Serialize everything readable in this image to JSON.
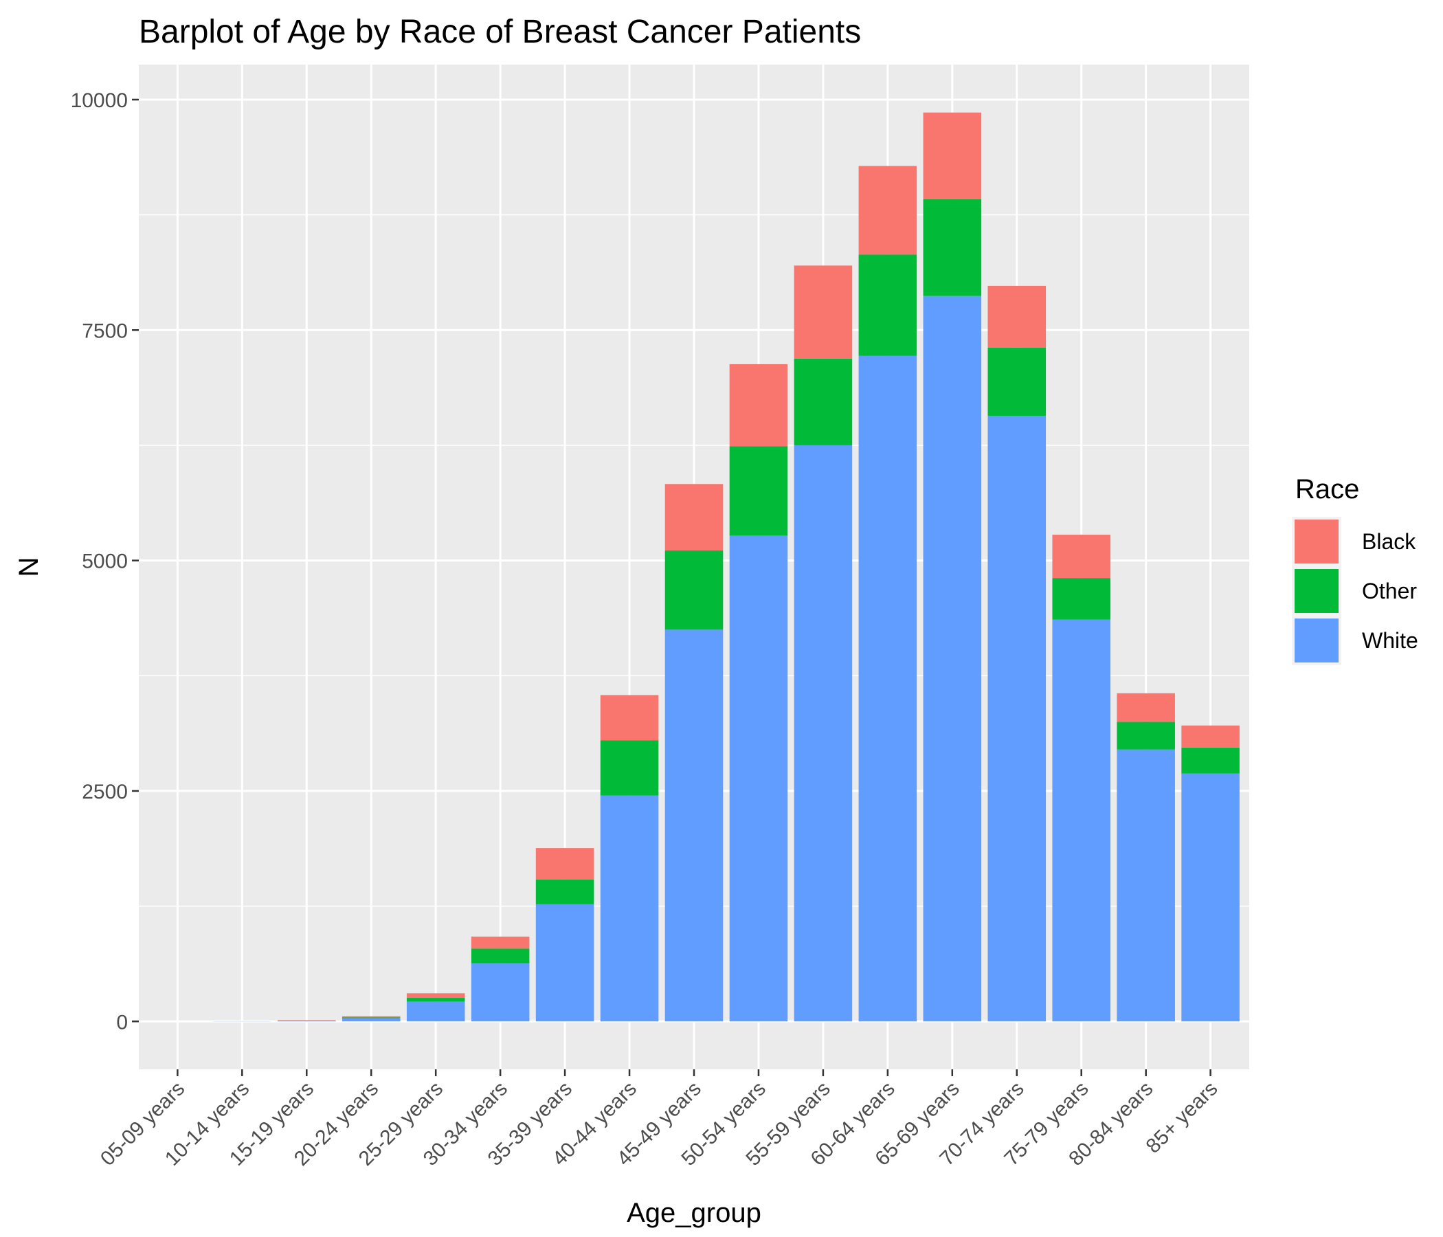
{
  "chart_data": {
    "type": "bar",
    "stacked": true,
    "title": "Barplot of Age by Race of Breast Cancer Patients",
    "xlabel": "Age_group",
    "ylabel": "N",
    "categories": [
      "05-09 years",
      "10-14 years",
      "15-19 years",
      "20-24 years",
      "25-29 years",
      "30-34 years",
      "35-39 years",
      "40-44 years",
      "45-49 years",
      "50-54 years",
      "55-59 years",
      "60-64 years",
      "65-69 years",
      "70-74 years",
      "75-79 years",
      "80-84 years",
      "85+ years"
    ],
    "series": [
      {
        "name": "White",
        "color": "#619CFF",
        "values": [
          0,
          1,
          8,
          35,
          215,
          630,
          1270,
          2450,
          4250,
          5270,
          6250,
          7220,
          7870,
          6570,
          4360,
          2950,
          2690
        ]
      },
      {
        "name": "Other",
        "color": "#00BA38",
        "values": [
          0,
          0,
          2,
          8,
          40,
          160,
          270,
          600,
          860,
          970,
          940,
          1100,
          1050,
          740,
          450,
          300,
          280
        ]
      },
      {
        "name": "Black",
        "color": "#F8766D",
        "values": [
          0,
          0,
          3,
          12,
          50,
          130,
          340,
          490,
          720,
          890,
          1010,
          960,
          940,
          670,
          470,
          310,
          240
        ]
      }
    ],
    "yticks": [
      0,
      2500,
      5000,
      7500,
      10000
    ],
    "ylim": [
      -520,
      10380
    ],
    "grid": true,
    "legend": {
      "title": "Race",
      "entries": [
        "Black",
        "Other",
        "White"
      ],
      "placement": "right"
    }
  }
}
